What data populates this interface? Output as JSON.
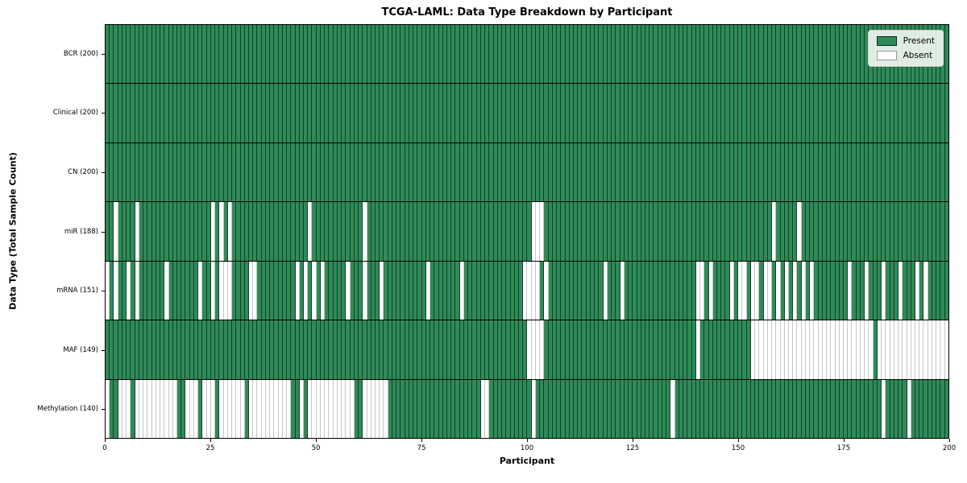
{
  "colors": {
    "present": "#2e8b57",
    "absent": "#ffffff",
    "axis": "#000000",
    "legend_bg": "rgba(255,255,255,0.85)",
    "legend_border": "#cccccc"
  },
  "chart_data": {
    "type": "heatmap",
    "title": "TCGA-LAML: Data Type Breakdown by Participant",
    "xlabel": "Participant",
    "ylabel": "Data Type (Total Sample Count)",
    "n_participants": 200,
    "x_ticks": [
      0,
      25,
      50,
      75,
      100,
      125,
      150,
      175,
      200
    ],
    "legend": {
      "present_label": "Present",
      "absent_label": "Absent"
    },
    "rows": [
      {
        "name": "BCR",
        "label": "BCR (200)",
        "total": 200,
        "absent": []
      },
      {
        "name": "Clinical",
        "label": "Clinical (200)",
        "total": 200,
        "absent": []
      },
      {
        "name": "CN",
        "label": "CN (200)",
        "total": 200,
        "absent": []
      },
      {
        "name": "miR",
        "label": "miR (188)",
        "total": 188,
        "absent": [
          2,
          7,
          25,
          27,
          29,
          48,
          61,
          101,
          102,
          103,
          158,
          164
        ]
      },
      {
        "name": "mRNA",
        "label": "mRNA (151)",
        "total": 151,
        "absent": [
          0,
          2,
          5,
          7,
          14,
          22,
          25,
          27,
          28,
          29,
          34,
          35,
          45,
          47,
          49,
          51,
          57,
          61,
          65,
          76,
          84,
          99,
          100,
          101,
          102,
          104,
          118,
          122,
          140,
          141,
          143,
          148,
          150,
          151,
          153,
          154,
          156,
          157,
          159,
          161,
          163,
          165,
          167,
          176,
          180,
          184,
          188,
          192,
          194
        ]
      },
      {
        "name": "MAF",
        "label": "MAF (149)",
        "total": 149,
        "absent": [
          100,
          101,
          102,
          103,
          140,
          153,
          154,
          155,
          156,
          157,
          158,
          159,
          160,
          161,
          162,
          163,
          164,
          165,
          166,
          167,
          168,
          169,
          170,
          171,
          172,
          173,
          174,
          175,
          176,
          177,
          178,
          179,
          180,
          181,
          183,
          184,
          185,
          186,
          187,
          188,
          189,
          190,
          191,
          192,
          193,
          194,
          195,
          196,
          197,
          198,
          199
        ]
      },
      {
        "name": "Methylation",
        "label": "Methylation (140)",
        "total": 140,
        "absent": [
          0,
          3,
          4,
          5,
          7,
          8,
          9,
          10,
          11,
          12,
          13,
          14,
          15,
          16,
          19,
          20,
          21,
          23,
          24,
          25,
          27,
          28,
          29,
          30,
          31,
          32,
          34,
          35,
          36,
          37,
          38,
          39,
          40,
          41,
          42,
          43,
          46,
          48,
          49,
          50,
          51,
          52,
          53,
          54,
          55,
          56,
          57,
          58,
          61,
          62,
          63,
          64,
          65,
          66,
          89,
          90,
          101,
          134,
          184,
          190
        ]
      }
    ]
  }
}
